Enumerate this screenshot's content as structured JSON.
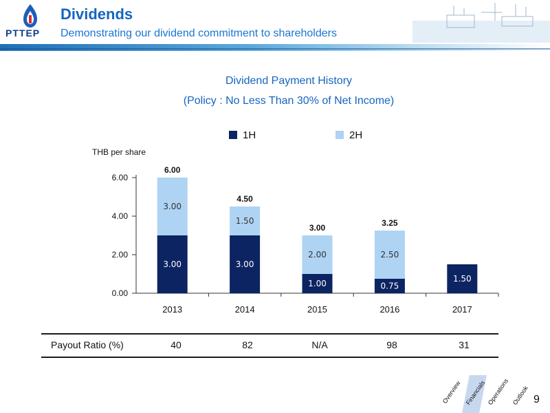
{
  "header": {
    "title": "Dividends",
    "subtitle": "Demonstrating our dividend commitment to shareholders",
    "logo_text": "PTTEP"
  },
  "chart_data": {
    "type": "bar",
    "stacked": true,
    "title": "Dividend Payment History",
    "subtitle": "(Policy : No Less Than 30% of Net Income)",
    "ylabel": "THB per share",
    "xlabel": "",
    "categories": [
      "2013",
      "2014",
      "2015",
      "2016",
      "2017"
    ],
    "series": [
      {
        "name": "1H",
        "values": [
          3.0,
          3.0,
          1.0,
          0.75,
          1.5
        ],
        "labels": [
          "3.00",
          "3.00",
          "1.00",
          "0.75",
          "1.50"
        ],
        "color": "#0c2461"
      },
      {
        "name": "2H",
        "values": [
          3.0,
          1.5,
          2.0,
          2.5,
          null
        ],
        "labels": [
          "3.00",
          "1.50",
          "2.00",
          "2.50",
          ""
        ],
        "color": "#aed3f3"
      }
    ],
    "totals": [
      "6.00",
      "4.50",
      "3.00",
      "3.25",
      ""
    ],
    "yticks": [
      "0.00",
      "2.00",
      "4.00",
      "6.00"
    ],
    "ylim": [
      0,
      6
    ],
    "legend_position": "top",
    "grid": false
  },
  "payout": {
    "label": "Payout Ratio (%)",
    "values": [
      "40",
      "82",
      "N/A",
      "98",
      "31"
    ]
  },
  "nav": {
    "tabs": [
      "Overview",
      "Financials",
      "Operations",
      "Outlook"
    ],
    "active": "Financials"
  },
  "page_number": "9"
}
